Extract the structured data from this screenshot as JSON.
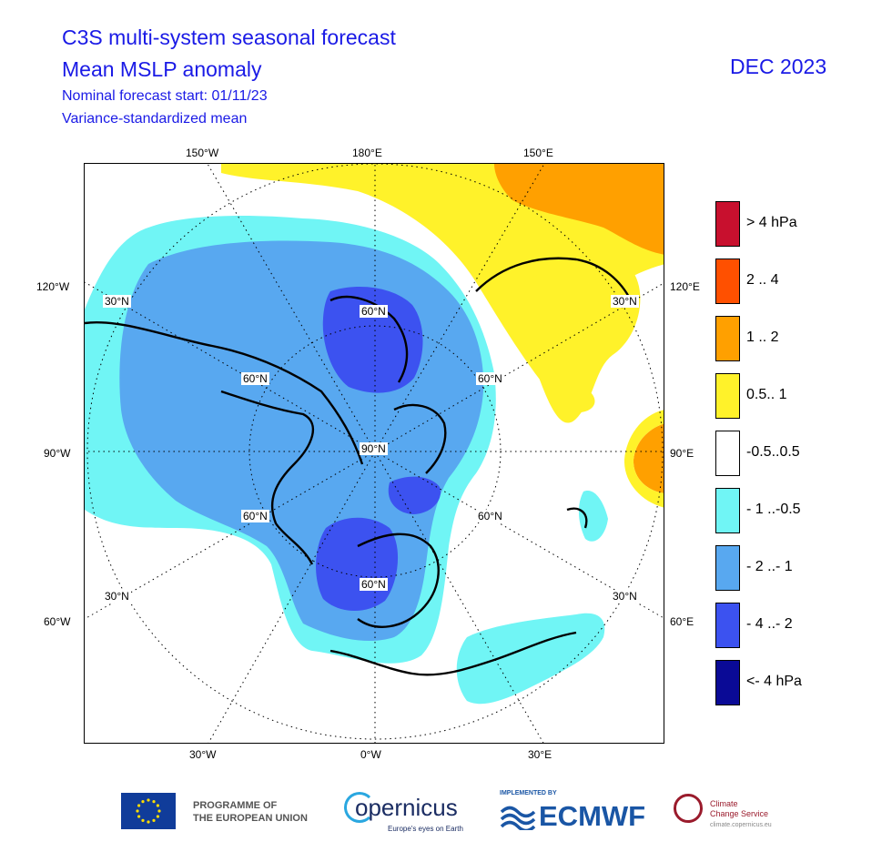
{
  "header": {
    "title_line1": "C3S multi-system seasonal forecast",
    "title_line2": "Mean MSLP anomaly",
    "subtitle_line1": "Nominal forecast start: 01/11/23",
    "subtitle_line2": "Variance-standardized mean",
    "valid_period": "DEC 2023"
  },
  "map": {
    "projection": "north-polar-stereographic",
    "edge_labels": {
      "top": [
        "150°W",
        "180°E",
        "150°E"
      ],
      "bottom": [
        "30°W",
        "0°W",
        "30°E"
      ],
      "left": [
        "120°W",
        "90°W",
        "60°W"
      ],
      "right": [
        "120°E",
        "90°E",
        "60°E"
      ]
    },
    "inner_labels": {
      "lat60": [
        "60°N",
        "60°N",
        "60°N",
        "60°N",
        "60°N",
        "60°N"
      ],
      "lat30": [
        "30°N",
        "30°N",
        "30°N",
        "30°N"
      ],
      "lat90": "90°N"
    }
  },
  "legend": [
    {
      "label": ">  4 hPa",
      "color": "#c8102e"
    },
    {
      "label": "2 .. 4",
      "color": "#ff5000"
    },
    {
      "label": "1 .. 2",
      "color": "#ffa000"
    },
    {
      "label": "0.5.. 1",
      "color": "#fff22a"
    },
    {
      "label": "-0.5..0.5",
      "color": "#ffffff"
    },
    {
      "label": "- 1 ..-0.5",
      "color": "#70f5f5"
    },
    {
      "label": "- 2 ..- 1",
      "color": "#58a8f0"
    },
    {
      "label": "- 4 ..- 2",
      "color": "#3c52f0"
    },
    {
      "label": "<- 4 hPa",
      "color": "#0a0a96"
    }
  ],
  "footer": {
    "eu_line1": "PROGRAMME OF",
    "eu_line2": "THE EUROPEAN UNION",
    "copernicus": "opernicus",
    "copernicus_tagline": "Europe's eyes on Earth",
    "ecmwf_implemented": "IMPLEMENTED BY",
    "ecmwf": "ECMWF",
    "c3s_line1": "Climate",
    "c3s_line2": "Change Service",
    "c3s_url": "climate.copernicus.eu"
  }
}
